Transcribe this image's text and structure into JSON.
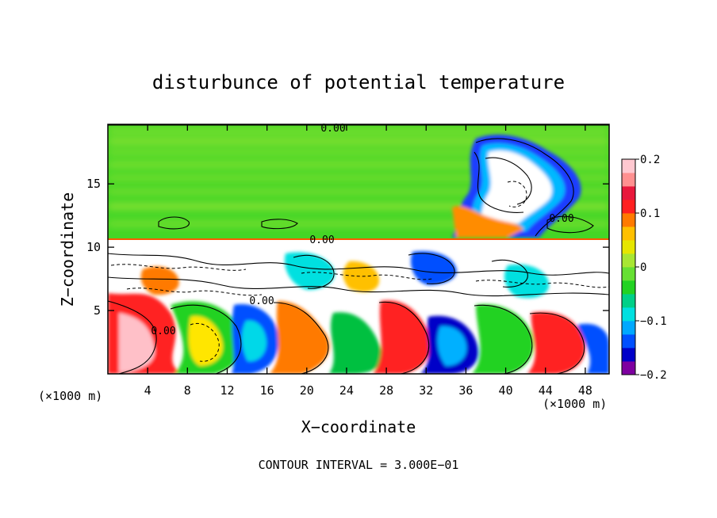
{
  "chart_data": {
    "type": "heatmap",
    "title": "disturbunce of potential temperature",
    "xlabel": "X−coordinate",
    "ylabel": "Z−coordinate",
    "x_unit": "(×1000 m)",
    "xlim": [
      0,
      50.4
    ],
    "ylim": [
      0,
      19.7
    ],
    "x_ticks": [
      4,
      8,
      12,
      16,
      20,
      24,
      28,
      32,
      36,
      40,
      44,
      48
    ],
    "y_ticks": [
      5,
      10,
      15
    ],
    "contour_labels": [
      {
        "text": "0.00",
        "x": 22.5,
        "z": 19.6
      },
      {
        "text": "0.00",
        "x": 21.8,
        "z": 10.6
      },
      {
        "text": "0.00",
        "x": 45.0,
        "z": 12.3
      },
      {
        "text": "0.00",
        "x": 15.2,
        "z": 5.8
      },
      {
        "text": "0.00",
        "x": 5.0,
        "z": 3.2
      }
    ],
    "colorbar": {
      "min": -0.2,
      "max": 0.2,
      "ticks": [
        "0.2",
        "0.1",
        "0",
        "−0.1",
        "−0.2"
      ],
      "colors": [
        "#7e00a0",
        "#0000c8",
        "#0050ff",
        "#00a8ff",
        "#00e0e0",
        "#00d088",
        "#22d222",
        "#66e033",
        "#a8e633",
        "#e6e600",
        "#ffc000",
        "#ff7a00",
        "#ff2020",
        "#e8183c",
        "#ff9090",
        "#ffc8d0"
      ]
    },
    "annotation": "CONTOUR INTERVAL = 3.000E−01"
  }
}
